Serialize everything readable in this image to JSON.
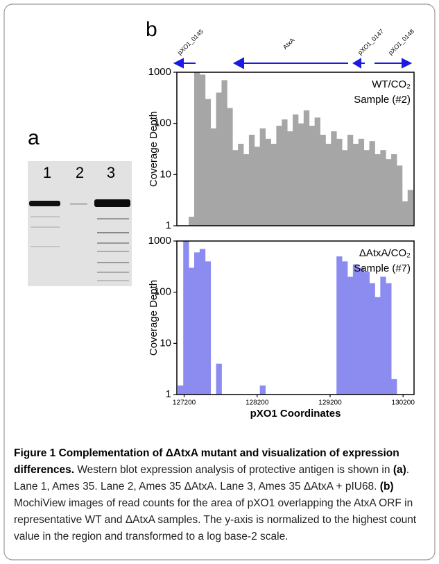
{
  "panel_a": {
    "label": "a",
    "lanes": [
      "1",
      "2",
      "3"
    ]
  },
  "panel_b": {
    "label": "b",
    "genes": [
      "pXO1_0145",
      "AtxA",
      "pXO1_0147",
      "pXO1_0148"
    ]
  },
  "chart_data": [
    {
      "type": "bar",
      "y_label": "Coverage Depth",
      "annotation": [
        "WT/CO₂",
        "Sample (#2)"
      ],
      "color": "#a6a6a6",
      "log_y": true,
      "xlim": [
        127100,
        130350
      ],
      "ylim": [
        1,
        1000
      ],
      "yticks": [
        1000,
        100,
        10,
        1
      ],
      "x": [
        127150,
        127225,
        127300,
        127375,
        127450,
        127525,
        127600,
        127675,
        127750,
        127825,
        127900,
        127975,
        128050,
        128125,
        128200,
        128275,
        128350,
        128425,
        128500,
        128575,
        128650,
        128725,
        128800,
        128875,
        128950,
        129025,
        129100,
        129175,
        129250,
        129325,
        129400,
        129475,
        129550,
        129625,
        129700,
        129775,
        129850,
        129925,
        130000,
        130075,
        130150,
        130225,
        130300
      ],
      "values": [
        1,
        1,
        1.5,
        1000,
        900,
        300,
        80,
        400,
        700,
        200,
        30,
        40,
        25,
        60,
        35,
        80,
        50,
        40,
        90,
        120,
        70,
        150,
        100,
        180,
        90,
        130,
        60,
        40,
        70,
        50,
        30,
        60,
        40,
        50,
        30,
        45,
        25,
        30,
        20,
        25,
        15,
        3,
        5
      ]
    },
    {
      "type": "bar",
      "y_label": "Coverage Depth",
      "x_label": "pXO1 Coordinates",
      "annotation": [
        "ΔAtxA/CO₂",
        "Sample (#7)"
      ],
      "color": "#8c8cf0",
      "log_y": true,
      "xlim": [
        127100,
        130350
      ],
      "ylim": [
        1,
        1000
      ],
      "yticks": [
        1000,
        100,
        10,
        1
      ],
      "xticks": [
        127200,
        128200,
        129200,
        130200
      ],
      "x": [
        127150,
        127225,
        127300,
        127375,
        127450,
        127525,
        127600,
        127675,
        127750,
        127825,
        127900,
        127975,
        128050,
        128125,
        128200,
        128275,
        128350,
        128425,
        128500,
        128575,
        128650,
        128725,
        128800,
        128875,
        128950,
        129025,
        129100,
        129175,
        129250,
        129325,
        129400,
        129475,
        129550,
        129625,
        129700,
        129775,
        129850,
        129925,
        130000,
        130075,
        130150,
        130225,
        130300
      ],
      "values": [
        1.5,
        1000,
        300,
        600,
        700,
        400,
        null,
        4,
        null,
        null,
        null,
        null,
        null,
        null,
        null,
        1.5,
        null,
        null,
        null,
        null,
        null,
        null,
        null,
        null,
        null,
        null,
        null,
        null,
        null,
        500,
        400,
        200,
        350,
        300,
        250,
        150,
        80,
        200,
        150,
        2,
        null,
        null,
        null
      ]
    }
  ],
  "caption": {
    "segments": [
      {
        "text": "Figure 1 Complementation of ΔAtxA mutant and visualization of expression differences.",
        "bold": true
      },
      {
        "text": " Western blot expression analysis of protective antigen is shown in ",
        "bold": false
      },
      {
        "text": "(a)",
        "bold": true
      },
      {
        "text": ". Lane 1, Ames 35. Lane 2, Ames 35 ΔAtxA. Lane 3, Ames 35 ΔAtxA + pIU68. ",
        "bold": false
      },
      {
        "text": "(b)",
        "bold": true
      },
      {
        "text": " MochiView images of read counts for the area of pXO1 overlapping the AtxA ORF in representative WT and ΔAtxA samples. The y-axis is normalized to the highest count value in the region and transformed to a log base-2 scale.",
        "bold": false
      }
    ]
  }
}
